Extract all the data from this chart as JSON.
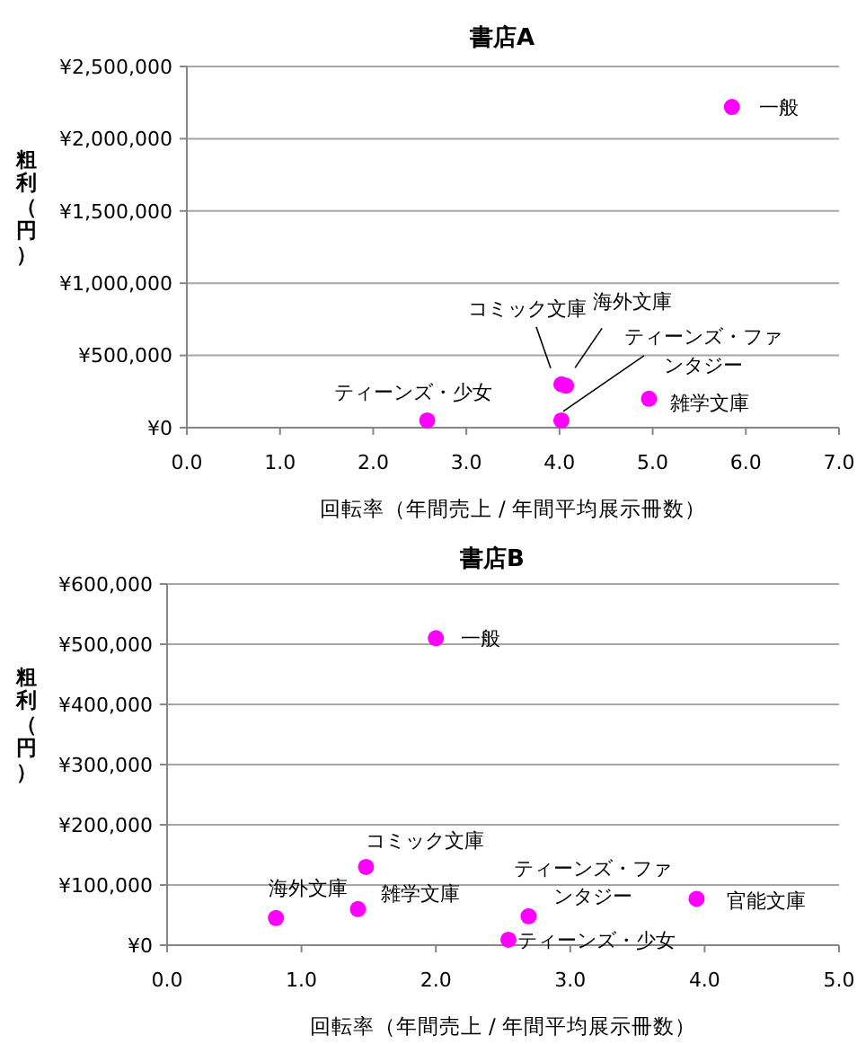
{
  "chart_data": [
    {
      "type": "scatter",
      "title": "書店A",
      "xlabel": "回転率（年間売上 /  年間平均展示冊数）",
      "ylabel": "粗利（円）",
      "xlim": [
        0,
        7
      ],
      "ylim": [
        0,
        2500000
      ],
      "xticks": [
        {
          "value": 0,
          "label": "0.0"
        },
        {
          "value": 1,
          "label": "1.0"
        },
        {
          "value": 2,
          "label": "2.0"
        },
        {
          "value": 3,
          "label": "3.0"
        },
        {
          "value": 4,
          "label": "4.0"
        },
        {
          "value": 5,
          "label": "5.0"
        },
        {
          "value": 6,
          "label": "6.0"
        },
        {
          "value": 7,
          "label": "7.0"
        }
      ],
      "yticks": [
        {
          "value": 0,
          "label": "¥0"
        },
        {
          "value": 500000,
          "label": "¥500,000"
        },
        {
          "value": 1000000,
          "label": "¥1,000,000"
        },
        {
          "value": 1500000,
          "label": "¥1,500,000"
        },
        {
          "value": 2000000,
          "label": "¥2,000,000"
        },
        {
          "value": 2500000,
          "label": "¥2,500,000"
        }
      ],
      "grid": "y",
      "marker": "circle",
      "series": [
        {
          "name": "一般",
          "color": "#ff00ff",
          "x": [
            5.85
          ],
          "values": [
            2220000
          ]
        },
        {
          "name": "コミック文庫",
          "color": "#ff00ff",
          "x": [
            4.02
          ],
          "values": [
            300000
          ]
        },
        {
          "name": "海外文庫",
          "color": "#ff00ff",
          "x": [
            4.07
          ],
          "values": [
            290000
          ]
        },
        {
          "name": "ティーンズ・ファンタジー",
          "color": "#ff00ff",
          "x": [
            4.02
          ],
          "values": [
            50000
          ]
        },
        {
          "name": "雑学文庫",
          "color": "#ff00ff",
          "x": [
            4.96
          ],
          "values": [
            200000
          ]
        },
        {
          "name": "ティーンズ・少女",
          "color": "#ff00ff",
          "x": [
            2.58
          ],
          "values": [
            50000
          ]
        }
      ]
    },
    {
      "type": "scatter",
      "title": "書店B",
      "xlabel": "回転率（年間売上 /  年間平均展示冊数）",
      "ylabel": "粗利（円）",
      "xlim": [
        0,
        5
      ],
      "ylim": [
        0,
        600000
      ],
      "xticks": [
        {
          "value": 0,
          "label": "0.0"
        },
        {
          "value": 1,
          "label": "1.0"
        },
        {
          "value": 2,
          "label": "2.0"
        },
        {
          "value": 3,
          "label": "3.0"
        },
        {
          "value": 4,
          "label": "4.0"
        },
        {
          "value": 5,
          "label": "5.0"
        }
      ],
      "yticks": [
        {
          "value": 0,
          "label": "¥0"
        },
        {
          "value": 100000,
          "label": "¥100,000"
        },
        {
          "value": 200000,
          "label": "¥200,000"
        },
        {
          "value": 300000,
          "label": "¥300,000"
        },
        {
          "value": 400000,
          "label": "¥400,000"
        },
        {
          "value": 500000,
          "label": "¥500,000"
        },
        {
          "value": 600000,
          "label": "¥600,000"
        }
      ],
      "grid": "y",
      "marker": "circle",
      "series": [
        {
          "name": "一般",
          "color": "#ff00ff",
          "x": [
            2.0
          ],
          "values": [
            510000
          ]
        },
        {
          "name": "コミック文庫",
          "color": "#ff00ff",
          "x": [
            1.48
          ],
          "values": [
            130000
          ]
        },
        {
          "name": "海外文庫",
          "color": "#ff00ff",
          "x": [
            0.81
          ],
          "values": [
            45000
          ]
        },
        {
          "name": "雑学文庫",
          "color": "#ff00ff",
          "x": [
            1.42
          ],
          "values": [
            60000
          ]
        },
        {
          "name": "ティーンズ・ファンタジー",
          "color": "#ff00ff",
          "x": [
            2.69
          ],
          "values": [
            48000
          ]
        },
        {
          "name": "ティーンズ・少女",
          "color": "#ff00ff",
          "x": [
            2.54
          ],
          "values": [
            9000
          ]
        },
        {
          "name": "官能文庫",
          "color": "#ff00ff",
          "x": [
            3.94
          ],
          "values": [
            77000
          ]
        }
      ]
    }
  ]
}
